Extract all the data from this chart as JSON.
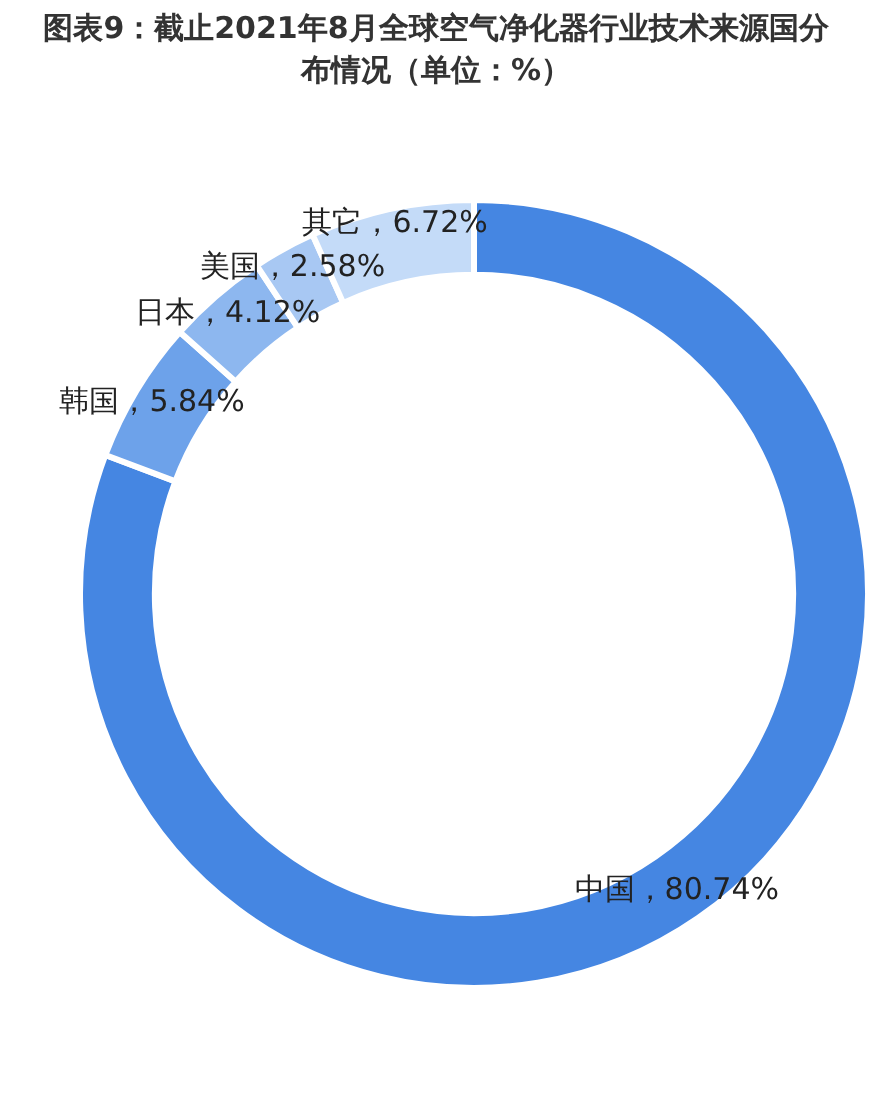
{
  "chart_data": {
    "type": "donut",
    "title": "图表9：截止2021年8月全球空气净化器行业技术来源国分布情况（单位：%）",
    "categories": [
      "中国",
      "韩国",
      "日本",
      "美国",
      "其它"
    ],
    "values": [
      80.74,
      5.84,
      4.12,
      2.58,
      6.72
    ],
    "colors": [
      "#4586e2",
      "#6da2ea",
      "#8db7ef",
      "#a8c8f3",
      "#c4dbf8"
    ],
    "value_labels": [
      "，80.74%",
      "，5.84%",
      "，4.12%",
      "，2.58%",
      "，6.72%"
    ]
  }
}
